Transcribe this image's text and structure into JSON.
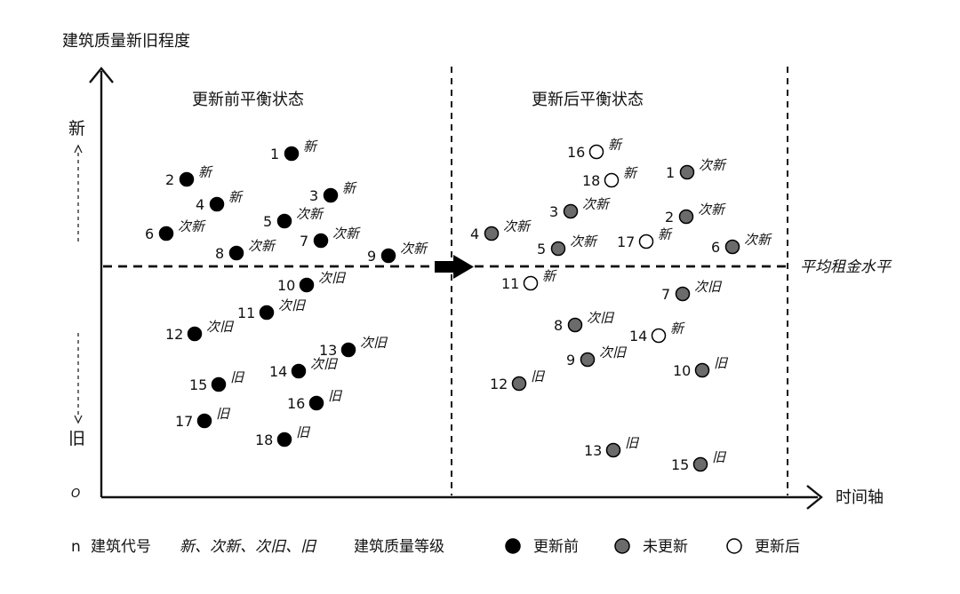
{
  "title_y_axis": "建筑质量新旧程度",
  "x_axis_label": "时间轴",
  "origin_label": "O",
  "y_top_label": "新",
  "y_bottom_label": "旧",
  "panel_left_title": "更新前平衡状态",
  "panel_right_title": "更新后平衡状态",
  "rent_level_label": "平均租金水平",
  "legend": {
    "code_symbol": "n",
    "code_text": "建筑代号",
    "grades_text": "新、次新、次旧、旧",
    "grades_suffix": "建筑质量等级",
    "before": "更新前",
    "not_updated": "未更新",
    "after": "更新后"
  },
  "colors": {
    "before": "#000000",
    "not_updated": "#6b6b6b",
    "after": "#ffffff"
  },
  "before_points": [
    {
      "id": "1",
      "grade": "新"
    },
    {
      "id": "2",
      "grade": "新"
    },
    {
      "id": "3",
      "grade": "新"
    },
    {
      "id": "4",
      "grade": "新"
    },
    {
      "id": "5",
      "grade": "次新"
    },
    {
      "id": "6",
      "grade": "次新"
    },
    {
      "id": "7",
      "grade": "次新"
    },
    {
      "id": "8",
      "grade": "次新"
    },
    {
      "id": "9",
      "grade": "次新"
    },
    {
      "id": "10",
      "grade": "次旧"
    },
    {
      "id": "11",
      "grade": "次旧"
    },
    {
      "id": "12",
      "grade": "次旧"
    },
    {
      "id": "13",
      "grade": "次旧"
    },
    {
      "id": "14",
      "grade": "次旧"
    },
    {
      "id": "15",
      "grade": "旧"
    },
    {
      "id": "16",
      "grade": "旧"
    },
    {
      "id": "17",
      "grade": "旧"
    },
    {
      "id": "18",
      "grade": "旧"
    }
  ],
  "after_points": [
    {
      "id": "16",
      "grade": "新",
      "state": "after"
    },
    {
      "id": "18",
      "grade": "新",
      "state": "after"
    },
    {
      "id": "1",
      "grade": "次新",
      "state": "not_updated"
    },
    {
      "id": "3",
      "grade": "次新",
      "state": "not_updated"
    },
    {
      "id": "2",
      "grade": "次新",
      "state": "not_updated"
    },
    {
      "id": "4",
      "grade": "次新",
      "state": "not_updated"
    },
    {
      "id": "5",
      "grade": "次新",
      "state": "not_updated"
    },
    {
      "id": "17",
      "grade": "新",
      "state": "after"
    },
    {
      "id": "6",
      "grade": "次新",
      "state": "not_updated"
    },
    {
      "id": "11",
      "grade": "新",
      "state": "after"
    },
    {
      "id": "7",
      "grade": "次旧",
      "state": "not_updated"
    },
    {
      "id": "8",
      "grade": "次旧",
      "state": "not_updated"
    },
    {
      "id": "14",
      "grade": "新",
      "state": "after"
    },
    {
      "id": "9",
      "grade": "次旧",
      "state": "not_updated"
    },
    {
      "id": "10",
      "grade": "旧",
      "state": "not_updated"
    },
    {
      "id": "12",
      "grade": "旧",
      "state": "not_updated"
    },
    {
      "id": "13",
      "grade": "旧",
      "state": "not_updated"
    },
    {
      "id": "15",
      "grade": "旧",
      "state": "not_updated"
    }
  ]
}
